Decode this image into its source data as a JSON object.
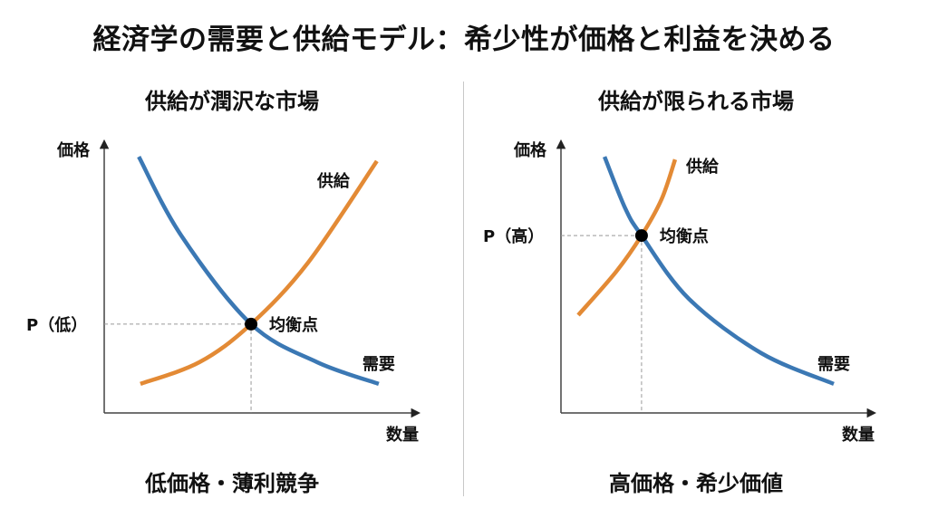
{
  "title": "経済学の需要と供給モデル：希少性が価格と利益を決める",
  "colors": {
    "demand": "#3b78b4",
    "supply": "#e38a35",
    "axis": "#444444",
    "guide": "#999999"
  },
  "chart_data": [
    {
      "type": "line",
      "title": "供給が潤沢な市場",
      "caption": "低価格・薄利競争",
      "ylabel": "価格",
      "xlabel": "数量",
      "xlim": [
        0,
        10
      ],
      "ylim": [
        0,
        10
      ],
      "grid": false,
      "price_label": "P（低）",
      "equilibrium_label": "均衡点",
      "equilibrium": [
        4.67,
        3.27
      ],
      "series": [
        {
          "name": "需要",
          "key": "demand",
          "points": [
            [
              1.1,
              9.43
            ],
            [
              2.45,
              6.53
            ],
            [
              4.67,
              3.27
            ],
            [
              6.77,
              1.87
            ],
            [
              8.73,
              1.07
            ]
          ]
        },
        {
          "name": "供給",
          "key": "supply",
          "points": [
            [
              1.15,
              1.07
            ],
            [
              3.03,
              1.87
            ],
            [
              4.67,
              3.27
            ],
            [
              6.48,
              5.53
            ],
            [
              8.67,
              9.27
            ]
          ]
        }
      ]
    },
    {
      "type": "line",
      "title": "供給が限られる市場",
      "caption": "高価格・希少価値",
      "ylabel": "価格",
      "xlabel": "数量",
      "xlim": [
        0,
        10
      ],
      "ylim": [
        0,
        10
      ],
      "grid": false,
      "price_label": "P（高）",
      "equilibrium_label": "均衡点",
      "equilibrium": [
        2.57,
        6.53
      ],
      "series": [
        {
          "name": "需要",
          "key": "demand",
          "points": [
            [
              1.39,
              9.43
            ],
            [
              2.05,
              7.53
            ],
            [
              2.57,
              6.53
            ],
            [
              4.08,
              4.2
            ],
            [
              6.39,
              2.2
            ],
            [
              8.7,
              1.07
            ]
          ]
        },
        {
          "name": "供給",
          "key": "supply",
          "points": [
            [
              0.55,
              3.6
            ],
            [
              1.76,
              5.2
            ],
            [
              2.57,
              6.53
            ],
            [
              3.21,
              7.87
            ],
            [
              3.64,
              9.33
            ]
          ]
        }
      ]
    }
  ]
}
